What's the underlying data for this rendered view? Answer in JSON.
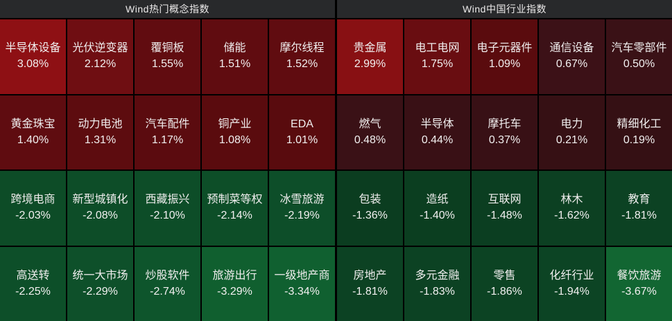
{
  "app": {
    "background": "#000000",
    "header_bg": "#28292b",
    "text_color": "#f0eeee",
    "max_gain_color": "#8e1014",
    "max_loss_color": "#126632"
  },
  "sections": [
    {
      "title": "Wind热门概念指数",
      "cells": [
        {
          "name": "半导体设备",
          "pct": "3.08%",
          "bg": "#8e1014"
        },
        {
          "name": "光伏逆变器",
          "pct": "2.12%",
          "bg": "#6f0e12"
        },
        {
          "name": "覆铜板",
          "pct": "1.55%",
          "bg": "#610c10"
        },
        {
          "name": "储能",
          "pct": "1.51%",
          "bg": "#600c10"
        },
        {
          "name": "摩尔线程",
          "pct": "1.52%",
          "bg": "#600c10"
        },
        {
          "name": "黄金珠宝",
          "pct": "1.40%",
          "bg": "#5f0c10"
        },
        {
          "name": "动力电池",
          "pct": "1.31%",
          "bg": "#5d0c0f"
        },
        {
          "name": "汽车配件",
          "pct": "1.17%",
          "bg": "#5b0b0f"
        },
        {
          "name": "铜产业",
          "pct": "1.08%",
          "bg": "#5a0b0e"
        },
        {
          "name": "EDA",
          "pct": "1.01%",
          "bg": "#590b0e"
        },
        {
          "name": "跨境电商",
          "pct": "-2.03%",
          "bg": "#0d4c27"
        },
        {
          "name": "新型城镇化",
          "pct": "-2.08%",
          "bg": "#0d4d28"
        },
        {
          "name": "西藏振兴",
          "pct": "-2.10%",
          "bg": "#0d4d28"
        },
        {
          "name": "预制菜等权",
          "pct": "-2.14%",
          "bg": "#0d4e28"
        },
        {
          "name": "冰雪旅游",
          "pct": "-2.19%",
          "bg": "#0d4e29"
        },
        {
          "name": "高送转",
          "pct": "-2.25%",
          "bg": "#0d4f29"
        },
        {
          "name": "统一大市场",
          "pct": "-2.29%",
          "bg": "#0e502a"
        },
        {
          "name": "炒股软件",
          "pct": "-2.74%",
          "bg": "#0e552c"
        },
        {
          "name": "旅游出行",
          "pct": "-3.29%",
          "bg": "#105f2f"
        },
        {
          "name": "一级地产商",
          "pct": "-3.34%",
          "bg": "#106030"
        }
      ]
    },
    {
      "title": "Wind中国行业指数",
      "cells": [
        {
          "name": "贵金属",
          "pct": "2.99%",
          "bg": "#881013"
        },
        {
          "name": "电工电网",
          "pct": "1.75%",
          "bg": "#690d11"
        },
        {
          "name": "电子元器件",
          "pct": "1.09%",
          "bg": "#5a0b0e"
        },
        {
          "name": "通信设备",
          "pct": "0.67%",
          "bg": "#3c1117"
        },
        {
          "name": "汽车零部件",
          "pct": "0.50%",
          "bg": "#3a1116"
        },
        {
          "name": "燃气",
          "pct": "0.48%",
          "bg": "#3a1116"
        },
        {
          "name": "半导体",
          "pct": "0.44%",
          "bg": "#391015"
        },
        {
          "name": "摩托车",
          "pct": "0.37%",
          "bg": "#381015"
        },
        {
          "name": "电力",
          "pct": "0.21%",
          "bg": "#361014"
        },
        {
          "name": "精细化工",
          "pct": "0.19%",
          "bg": "#351014"
        },
        {
          "name": "包装",
          "pct": "-1.36%",
          "bg": "#0b3d20"
        },
        {
          "name": "造纸",
          "pct": "-1.40%",
          "bg": "#0b3e20"
        },
        {
          "name": "互联网",
          "pct": "-1.48%",
          "bg": "#0b3e21"
        },
        {
          "name": "林木",
          "pct": "-1.62%",
          "bg": "#0c4022"
        },
        {
          "name": "教育",
          "pct": "-1.81%",
          "bg": "#0c4223"
        },
        {
          "name": "房地产",
          "pct": "-1.81%",
          "bg": "#0c4223"
        },
        {
          "name": "多元金融",
          "pct": "-1.83%",
          "bg": "#0c4223"
        },
        {
          "name": "零售",
          "pct": "-1.86%",
          "bg": "#0c4323"
        },
        {
          "name": "化纤行业",
          "pct": "-1.94%",
          "bg": "#0c4424"
        },
        {
          "name": "餐饮旅游",
          "pct": "-3.67%",
          "bg": "#126632"
        }
      ]
    }
  ],
  "chart_data": [
    {
      "type": "heatmap",
      "title": "Wind热门概念指数",
      "grid": {
        "cols": 5,
        "rows": 4
      },
      "labels": [
        "半导体设备",
        "光伏逆变器",
        "覆铜板",
        "储能",
        "摩尔线程",
        "黄金珠宝",
        "动力电池",
        "汽车配件",
        "铜产业",
        "EDA",
        "跨境电商",
        "新型城镇化",
        "西藏振兴",
        "预制菜等权",
        "冰雪旅游",
        "高送转",
        "统一大市场",
        "炒股软件",
        "旅游出行",
        "一级地产商"
      ],
      "values": [
        3.08,
        2.12,
        1.55,
        1.51,
        1.52,
        1.4,
        1.31,
        1.17,
        1.08,
        1.01,
        -2.03,
        -2.08,
        -2.1,
        -2.14,
        -2.19,
        -2.25,
        -2.29,
        -2.74,
        -3.29,
        -3.34
      ],
      "unit": "%",
      "color_rule": "red=positive (brighter=larger gain), green=negative (brighter=larger loss)"
    },
    {
      "type": "heatmap",
      "title": "Wind中国行业指数",
      "grid": {
        "cols": 5,
        "rows": 4
      },
      "labels": [
        "贵金属",
        "电工电网",
        "电子元器件",
        "通信设备",
        "汽车零部件",
        "燃气",
        "半导体",
        "摩托车",
        "电力",
        "精细化工",
        "包装",
        "造纸",
        "互联网",
        "林木",
        "教育",
        "房地产",
        "多元金融",
        "零售",
        "化纤行业",
        "餐饮旅游"
      ],
      "values": [
        2.99,
        1.75,
        1.09,
        0.67,
        0.5,
        0.48,
        0.44,
        0.37,
        0.21,
        0.19,
        -1.36,
        -1.4,
        -1.48,
        -1.62,
        -1.81,
        -1.81,
        -1.83,
        -1.86,
        -1.94,
        -3.67
      ],
      "unit": "%",
      "color_rule": "red=positive (brighter=larger gain), green=negative (brighter=larger loss)"
    }
  ]
}
